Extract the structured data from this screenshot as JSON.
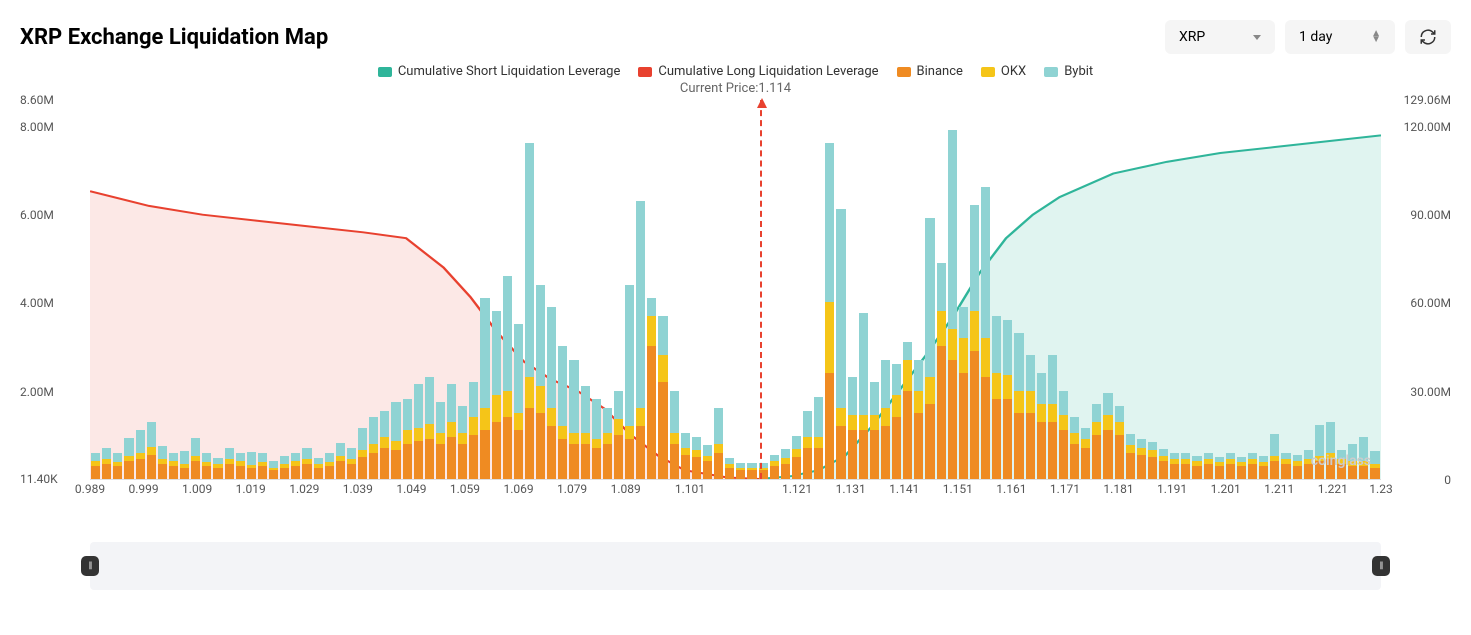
{
  "title": "XRP Exchange Liquidation Map",
  "asset_dropdown": {
    "value": "XRP"
  },
  "range_dropdown": {
    "value": "1 day"
  },
  "current_price_label": "Current Price:1.114",
  "current_price": 1.114,
  "watermark": "coinglass",
  "legend": [
    {
      "label": "Cumulative Short Liquidation Leverage",
      "color": "#2fb59a"
    },
    {
      "label": "Cumulative Long Liquidation Leverage",
      "color": "#e8412f"
    },
    {
      "label": "Binance",
      "color": "#ef8b22"
    },
    {
      "label": "OKX",
      "color": "#f5c518"
    },
    {
      "label": "Bybit",
      "color": "#8fd3d3"
    }
  ],
  "colors": {
    "short_line": "#2fb59a",
    "short_fill": "rgba(47,181,154,0.15)",
    "long_line": "#e8412f",
    "long_fill": "rgba(232,65,47,0.12)",
    "binance": "#ef8b22",
    "okx": "#f5c518",
    "bybit": "#8fd3d3",
    "price_line": "#e8412f",
    "bg": "#ffffff",
    "scrubber_bg": "#f3f4f7",
    "handle": "#333333",
    "axis_text": "#555555"
  },
  "chart": {
    "type": "stacked-bar + area-line",
    "x_range": [
      0.989,
      1.23
    ],
    "x_tick_step": 0.01,
    "x_tick_labels": [
      "0.989",
      "0.999",
      "1.009",
      "1.019",
      "1.029",
      "1.039",
      "1.049",
      "1.059",
      "1.069",
      "1.079",
      "1.089",
      "1.101",
      "1.121",
      "1.131",
      "1.141",
      "1.151",
      "1.161",
      "1.171",
      "1.181",
      "1.191",
      "1.201",
      "1.211",
      "1.221",
      "1.23"
    ],
    "y_left_ticks": [
      {
        "label": "8.60M",
        "value": 8.6
      },
      {
        "label": "8.00M",
        "value": 8.0
      },
      {
        "label": "6.00M",
        "value": 6.0
      },
      {
        "label": "4.00M",
        "value": 4.0
      },
      {
        "label": "2.00M",
        "value": 2.0
      },
      {
        "label": "11.40K",
        "value": 0.0114
      }
    ],
    "y_left_max": 8.6,
    "y_right_ticks": [
      {
        "label": "129.06M",
        "value": 129.06
      },
      {
        "label": "120.00M",
        "value": 120.0
      },
      {
        "label": "90.00M",
        "value": 90.0
      },
      {
        "label": "60.00M",
        "value": 60.0
      },
      {
        "label": "30.00M",
        "value": 30.0
      },
      {
        "label": "0",
        "value": 0
      }
    ],
    "y_right_max": 129.06,
    "bars": [
      {
        "x": 0.989,
        "binance": 0.3,
        "okx": 0.1,
        "bybit": 0.2
      },
      {
        "x": 0.991,
        "binance": 0.35,
        "okx": 0.1,
        "bybit": 0.25
      },
      {
        "x": 0.993,
        "binance": 0.3,
        "okx": 0.08,
        "bybit": 0.2
      },
      {
        "x": 0.995,
        "binance": 0.4,
        "okx": 0.12,
        "bybit": 0.4
      },
      {
        "x": 0.997,
        "binance": 0.45,
        "okx": 0.15,
        "bybit": 0.5
      },
      {
        "x": 0.999,
        "binance": 0.55,
        "okx": 0.18,
        "bybit": 0.55
      },
      {
        "x": 1.001,
        "binance": 0.35,
        "okx": 0.1,
        "bybit": 0.3
      },
      {
        "x": 1.003,
        "binance": 0.3,
        "okx": 0.1,
        "bybit": 0.2
      },
      {
        "x": 1.005,
        "binance": 0.25,
        "okx": 0.08,
        "bybit": 0.3
      },
      {
        "x": 1.007,
        "binance": 0.4,
        "okx": 0.12,
        "bybit": 0.4
      },
      {
        "x": 1.009,
        "binance": 0.3,
        "okx": 0.08,
        "bybit": 0.2
      },
      {
        "x": 1.011,
        "binance": 0.25,
        "okx": 0.08,
        "bybit": 0.15
      },
      {
        "x": 1.013,
        "binance": 0.35,
        "okx": 0.1,
        "bybit": 0.25
      },
      {
        "x": 1.015,
        "binance": 0.3,
        "okx": 0.1,
        "bybit": 0.2
      },
      {
        "x": 1.017,
        "binance": 0.25,
        "okx": 0.06,
        "bybit": 0.3
      },
      {
        "x": 1.019,
        "binance": 0.3,
        "okx": 0.08,
        "bybit": 0.2
      },
      {
        "x": 1.021,
        "binance": 0.2,
        "okx": 0.06,
        "bybit": 0.15
      },
      {
        "x": 1.023,
        "binance": 0.25,
        "okx": 0.08,
        "bybit": 0.2
      },
      {
        "x": 1.025,
        "binance": 0.3,
        "okx": 0.1,
        "bybit": 0.2
      },
      {
        "x": 1.027,
        "binance": 0.35,
        "okx": 0.1,
        "bybit": 0.25
      },
      {
        "x": 1.029,
        "binance": 0.25,
        "okx": 0.08,
        "bybit": 0.15
      },
      {
        "x": 1.031,
        "binance": 0.3,
        "okx": 0.08,
        "bybit": 0.2
      },
      {
        "x": 1.033,
        "binance": 0.4,
        "okx": 0.12,
        "bybit": 0.3
      },
      {
        "x": 1.035,
        "binance": 0.35,
        "okx": 0.1,
        "bybit": 0.25
      },
      {
        "x": 1.037,
        "binance": 0.5,
        "okx": 0.15,
        "bybit": 0.5
      },
      {
        "x": 1.039,
        "binance": 0.6,
        "okx": 0.2,
        "bybit": 0.6
      },
      {
        "x": 1.041,
        "binance": 0.7,
        "okx": 0.25,
        "bybit": 0.6
      },
      {
        "x": 1.043,
        "binance": 0.65,
        "okx": 0.2,
        "bybit": 0.9
      },
      {
        "x": 1.045,
        "binance": 0.8,
        "okx": 0.3,
        "bybit": 0.7
      },
      {
        "x": 1.047,
        "binance": 0.85,
        "okx": 0.3,
        "bybit": 1.0
      },
      {
        "x": 1.049,
        "binance": 0.9,
        "okx": 0.35,
        "bybit": 1.05
      },
      {
        "x": 1.051,
        "binance": 0.8,
        "okx": 0.25,
        "bybit": 0.7
      },
      {
        "x": 1.053,
        "binance": 0.95,
        "okx": 0.35,
        "bybit": 0.85
      },
      {
        "x": 1.055,
        "binance": 0.8,
        "okx": 0.25,
        "bybit": 0.6
      },
      {
        "x": 1.057,
        "binance": 1.0,
        "okx": 0.4,
        "bybit": 0.8
      },
      {
        "x": 1.059,
        "binance": 1.1,
        "okx": 0.5,
        "bybit": 2.5
      },
      {
        "x": 1.061,
        "binance": 1.3,
        "okx": 0.6,
        "bybit": 1.9
      },
      {
        "x": 1.063,
        "binance": 1.4,
        "okx": 0.6,
        "bybit": 2.6
      },
      {
        "x": 1.065,
        "binance": 1.1,
        "okx": 0.4,
        "bybit": 2.0
      },
      {
        "x": 1.067,
        "binance": 1.6,
        "okx": 0.7,
        "bybit": 5.3
      },
      {
        "x": 1.069,
        "binance": 1.5,
        "okx": 0.6,
        "bybit": 2.3
      },
      {
        "x": 1.071,
        "binance": 1.2,
        "okx": 0.4,
        "bybit": 2.3
      },
      {
        "x": 1.073,
        "binance": 0.9,
        "okx": 0.3,
        "bybit": 1.8
      },
      {
        "x": 1.075,
        "binance": 0.8,
        "okx": 0.25,
        "bybit": 1.65
      },
      {
        "x": 1.077,
        "binance": 0.8,
        "okx": 0.25,
        "bybit": 1.05
      },
      {
        "x": 1.079,
        "binance": 0.7,
        "okx": 0.2,
        "bybit": 0.9
      },
      {
        "x": 1.081,
        "binance": 0.8,
        "okx": 0.25,
        "bybit": 0.55
      },
      {
        "x": 1.083,
        "binance": 1.0,
        "okx": 0.35,
        "bybit": 0.65
      },
      {
        "x": 1.085,
        "binance": 0.9,
        "okx": 0.3,
        "bybit": 3.2
      },
      {
        "x": 1.087,
        "binance": 1.2,
        "okx": 0.4,
        "bybit": 4.7
      },
      {
        "x": 1.089,
        "binance": 3.0,
        "okx": 0.7,
        "bybit": 0.4
      },
      {
        "x": 1.091,
        "binance": 2.2,
        "okx": 0.6,
        "bybit": 0.9
      },
      {
        "x": 1.093,
        "binance": 0.8,
        "okx": 0.25,
        "bybit": 0.95
      },
      {
        "x": 1.095,
        "binance": 0.55,
        "okx": 0.15,
        "bybit": 0.35
      },
      {
        "x": 1.097,
        "binance": 0.5,
        "okx": 0.15,
        "bybit": 0.3
      },
      {
        "x": 1.099,
        "binance": 0.4,
        "okx": 0.12,
        "bybit": 0.25
      },
      {
        "x": 1.101,
        "binance": 0.6,
        "okx": 0.2,
        "bybit": 0.8
      },
      {
        "x": 1.103,
        "binance": 0.25,
        "okx": 0.08,
        "bybit": 0.15
      },
      {
        "x": 1.105,
        "binance": 0.2,
        "okx": 0.06,
        "bybit": 0.1
      },
      {
        "x": 1.117,
        "binance": 0.2,
        "okx": 0.06,
        "bybit": 0.1
      },
      {
        "x": 1.119,
        "binance": 0.2,
        "okx": 0.06,
        "bybit": 0.1
      },
      {
        "x": 1.121,
        "binance": 0.3,
        "okx": 0.1,
        "bybit": 0.15
      },
      {
        "x": 1.123,
        "binance": 0.35,
        "okx": 0.12,
        "bybit": 0.2
      },
      {
        "x": 1.125,
        "binance": 0.5,
        "okx": 0.18,
        "bybit": 0.3
      },
      {
        "x": 1.127,
        "binance": 0.7,
        "okx": 0.25,
        "bybit": 0.6
      },
      {
        "x": 1.129,
        "binance": 0.7,
        "okx": 0.25,
        "bybit": 0.9
      },
      {
        "x": 1.131,
        "binance": 2.4,
        "okx": 1.6,
        "bybit": 3.6
      },
      {
        "x": 1.133,
        "binance": 1.2,
        "okx": 0.4,
        "bybit": 4.5
      },
      {
        "x": 1.135,
        "binance": 1.1,
        "okx": 0.35,
        "bybit": 0.85
      },
      {
        "x": 1.137,
        "binance": 1.1,
        "okx": 0.35,
        "bybit": 2.3
      },
      {
        "x": 1.139,
        "binance": 1.1,
        "okx": 0.35,
        "bybit": 0.75
      },
      {
        "x": 1.141,
        "binance": 1.2,
        "okx": 0.4,
        "bybit": 1.1
      },
      {
        "x": 1.143,
        "binance": 1.4,
        "okx": 0.5,
        "bybit": 0.7
      },
      {
        "x": 1.145,
        "binance": 2.0,
        "okx": 0.7,
        "bybit": 0.4
      },
      {
        "x": 1.147,
        "binance": 1.5,
        "okx": 0.5,
        "bybit": 0.7
      },
      {
        "x": 1.149,
        "binance": 1.7,
        "okx": 0.6,
        "bybit": 3.6
      },
      {
        "x": 1.151,
        "binance": 3.0,
        "okx": 0.8,
        "bybit": 1.1
      },
      {
        "x": 1.153,
        "binance": 2.7,
        "okx": 0.7,
        "bybit": 4.5
      },
      {
        "x": 1.155,
        "binance": 2.4,
        "okx": 0.8,
        "bybit": 0.7
      },
      {
        "x": 1.157,
        "binance": 2.9,
        "okx": 0.9,
        "bybit": 2.4
      },
      {
        "x": 1.159,
        "binance": 2.3,
        "okx": 0.9,
        "bybit": 3.4
      },
      {
        "x": 1.161,
        "binance": 1.8,
        "okx": 0.6,
        "bybit": 1.3
      },
      {
        "x": 1.163,
        "binance": 1.8,
        "okx": 0.55,
        "bybit": 1.25
      },
      {
        "x": 1.165,
        "binance": 1.5,
        "okx": 0.5,
        "bybit": 1.3
      },
      {
        "x": 1.167,
        "binance": 1.5,
        "okx": 0.5,
        "bybit": 0.8
      },
      {
        "x": 1.169,
        "binance": 1.3,
        "okx": 0.4,
        "bybit": 0.7
      },
      {
        "x": 1.171,
        "binance": 1.3,
        "okx": 0.4,
        "bybit": 1.1
      },
      {
        "x": 1.173,
        "binance": 1.1,
        "okx": 0.35,
        "bybit": 0.55
      },
      {
        "x": 1.175,
        "binance": 0.8,
        "okx": 0.25,
        "bybit": 0.35
      },
      {
        "x": 1.177,
        "binance": 0.7,
        "okx": 0.2,
        "bybit": 0.25
      },
      {
        "x": 1.179,
        "binance": 1.0,
        "okx": 0.3,
        "bybit": 0.4
      },
      {
        "x": 1.181,
        "binance": 1.1,
        "okx": 0.35,
        "bybit": 0.5
      },
      {
        "x": 1.183,
        "binance": 1.0,
        "okx": 0.3,
        "bybit": 0.35
      },
      {
        "x": 1.185,
        "binance": 0.6,
        "okx": 0.18,
        "bybit": 0.25
      },
      {
        "x": 1.187,
        "binance": 0.55,
        "okx": 0.15,
        "bybit": 0.2
      },
      {
        "x": 1.189,
        "binance": 0.5,
        "okx": 0.15,
        "bybit": 0.18
      },
      {
        "x": 1.191,
        "binance": 0.4,
        "okx": 0.12,
        "bybit": 0.15
      },
      {
        "x": 1.193,
        "binance": 0.35,
        "okx": 0.1,
        "bybit": 0.15
      },
      {
        "x": 1.195,
        "binance": 0.35,
        "okx": 0.1,
        "bybit": 0.15
      },
      {
        "x": 1.197,
        "binance": 0.3,
        "okx": 0.1,
        "bybit": 0.12
      },
      {
        "x": 1.199,
        "binance": 0.35,
        "okx": 0.1,
        "bybit": 0.15
      },
      {
        "x": 1.201,
        "binance": 0.3,
        "okx": 0.08,
        "bybit": 0.12
      },
      {
        "x": 1.203,
        "binance": 0.35,
        "okx": 0.1,
        "bybit": 0.15
      },
      {
        "x": 1.205,
        "binance": 0.3,
        "okx": 0.08,
        "bybit": 0.12
      },
      {
        "x": 1.207,
        "binance": 0.35,
        "okx": 0.1,
        "bybit": 0.15
      },
      {
        "x": 1.209,
        "binance": 0.3,
        "okx": 0.08,
        "bybit": 0.15
      },
      {
        "x": 1.211,
        "binance": 0.4,
        "okx": 0.12,
        "bybit": 0.5
      },
      {
        "x": 1.213,
        "binance": 0.35,
        "okx": 0.1,
        "bybit": 0.15
      },
      {
        "x": 1.215,
        "binance": 0.3,
        "okx": 0.1,
        "bybit": 0.15
      },
      {
        "x": 1.217,
        "binance": 0.35,
        "okx": 0.1,
        "bybit": 0.2
      },
      {
        "x": 1.219,
        "binance": 0.4,
        "okx": 0.12,
        "bybit": 0.7
      },
      {
        "x": 1.221,
        "binance": 0.45,
        "okx": 0.15,
        "bybit": 0.7
      },
      {
        "x": 1.223,
        "binance": 0.35,
        "okx": 0.1,
        "bybit": 0.2
      },
      {
        "x": 1.225,
        "binance": 0.3,
        "okx": 0.1,
        "bybit": 0.4
      },
      {
        "x": 1.227,
        "binance": 0.3,
        "okx": 0.1,
        "bybit": 0.55
      },
      {
        "x": 1.229,
        "binance": 0.25,
        "okx": 0.08,
        "bybit": 0.3
      }
    ],
    "long_line": [
      {
        "x": 0.989,
        "y": 98
      },
      {
        "x": 1.0,
        "y": 93
      },
      {
        "x": 1.01,
        "y": 90
      },
      {
        "x": 1.02,
        "y": 88
      },
      {
        "x": 1.03,
        "y": 86
      },
      {
        "x": 1.04,
        "y": 84
      },
      {
        "x": 1.048,
        "y": 82
      },
      {
        "x": 1.055,
        "y": 72
      },
      {
        "x": 1.06,
        "y": 62
      },
      {
        "x": 1.065,
        "y": 50
      },
      {
        "x": 1.07,
        "y": 40
      },
      {
        "x": 1.075,
        "y": 34
      },
      {
        "x": 1.08,
        "y": 30
      },
      {
        "x": 1.085,
        "y": 24
      },
      {
        "x": 1.09,
        "y": 15
      },
      {
        "x": 1.095,
        "y": 8
      },
      {
        "x": 1.1,
        "y": 3
      },
      {
        "x": 1.108,
        "y": 0.5
      },
      {
        "x": 1.114,
        "y": 0
      }
    ],
    "short_line": [
      {
        "x": 1.114,
        "y": 0
      },
      {
        "x": 1.12,
        "y": 1
      },
      {
        "x": 1.125,
        "y": 3
      },
      {
        "x": 1.13,
        "y": 8
      },
      {
        "x": 1.135,
        "y": 18
      },
      {
        "x": 1.14,
        "y": 30
      },
      {
        "x": 1.145,
        "y": 42
      },
      {
        "x": 1.15,
        "y": 55
      },
      {
        "x": 1.155,
        "y": 70
      },
      {
        "x": 1.16,
        "y": 82
      },
      {
        "x": 1.165,
        "y": 90
      },
      {
        "x": 1.17,
        "y": 96
      },
      {
        "x": 1.18,
        "y": 104
      },
      {
        "x": 1.19,
        "y": 108
      },
      {
        "x": 1.2,
        "y": 111
      },
      {
        "x": 1.21,
        "y": 113
      },
      {
        "x": 1.22,
        "y": 115
      },
      {
        "x": 1.23,
        "y": 117
      }
    ]
  }
}
